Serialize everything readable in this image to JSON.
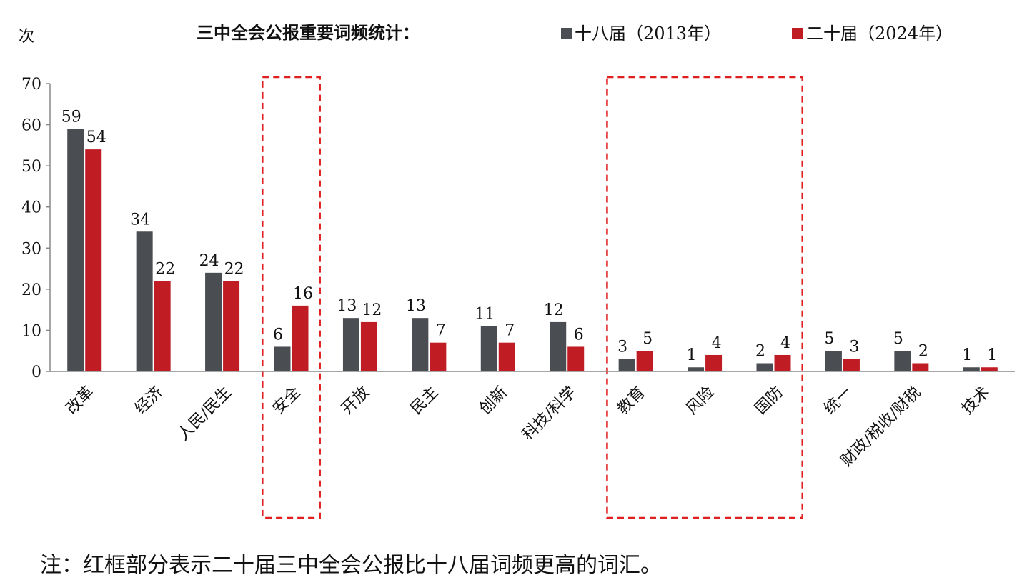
{
  "chart_data": {
    "type": "bar",
    "title": "三中全会公报重要词频统计：",
    "ylabel": "次",
    "ylim": [
      0,
      70
    ],
    "yticks": [
      0,
      10,
      20,
      30,
      40,
      50,
      60,
      70
    ],
    "grid": false,
    "legend_position": "top-right",
    "categories": [
      "改革",
      "经济",
      "人民/民生",
      "安全",
      "开放",
      "民主",
      "创新",
      "科技/科学",
      "教育",
      "风险",
      "国防",
      "统一",
      "财政/税收/财税",
      "技术"
    ],
    "series": [
      {
        "name": "十八届（2013年）",
        "color": "#4a4d52",
        "values": [
          59,
          34,
          24,
          6,
          13,
          13,
          11,
          12,
          3,
          1,
          2,
          5,
          5,
          1
        ]
      },
      {
        "name": "二十届（2024年）",
        "color": "#c01c24",
        "values": [
          54,
          22,
          22,
          16,
          12,
          7,
          7,
          6,
          5,
          4,
          4,
          3,
          2,
          1
        ]
      }
    ],
    "highlight_groups": [
      [
        "安全"
      ],
      [
        "教育",
        "风险",
        "国防"
      ]
    ],
    "highlight_color": "#e02020"
  },
  "note": "注：红框部分表示二十届三中全会公报比十八届词频更高的词汇。"
}
